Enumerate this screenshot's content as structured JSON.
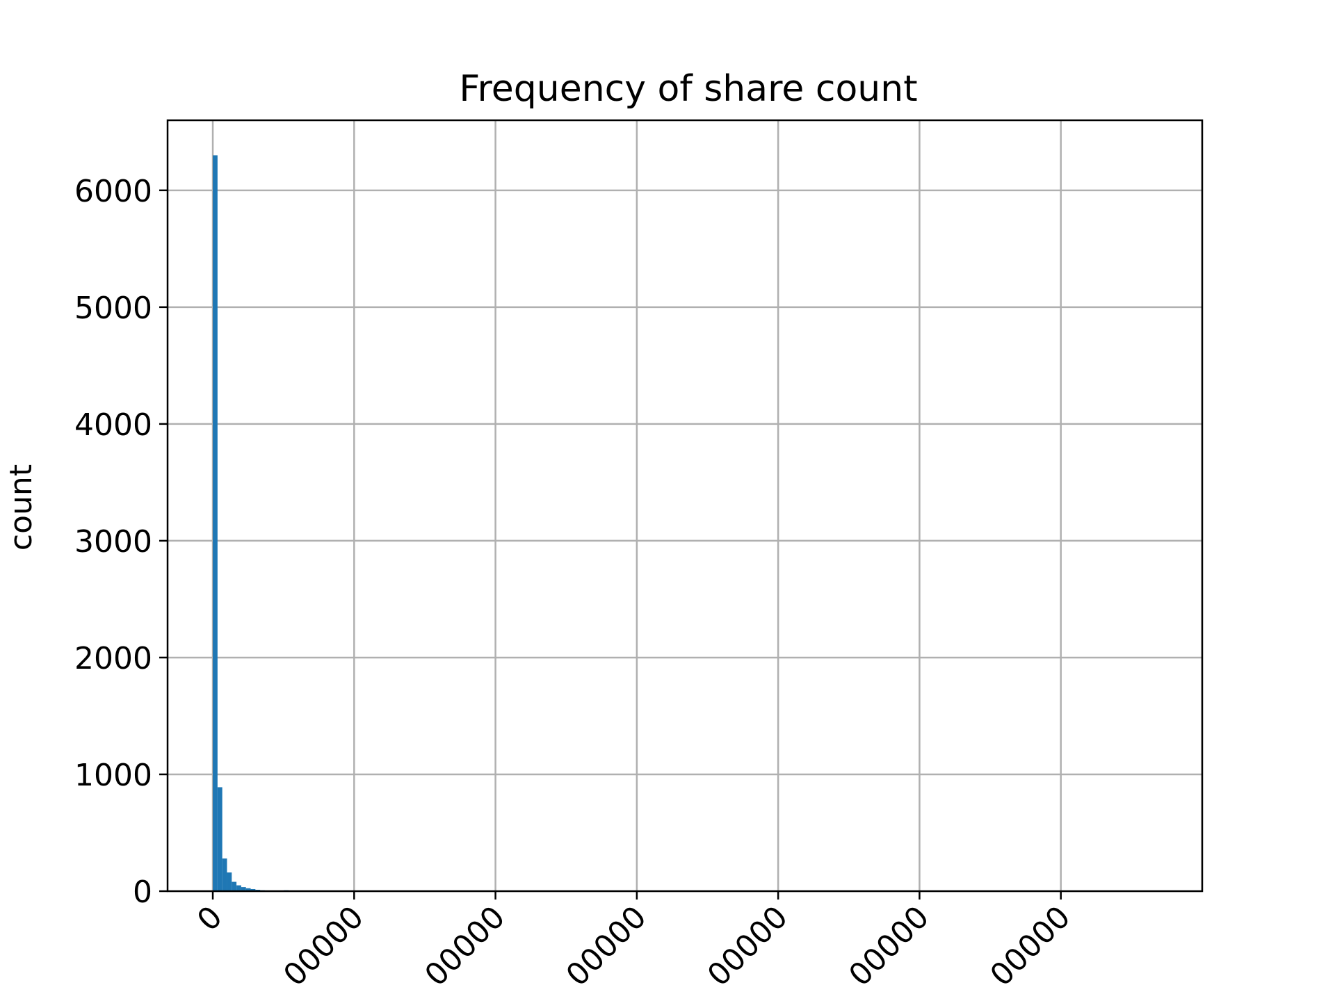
{
  "chart_data": {
    "type": "bar",
    "title": "Frequency of share count",
    "xlabel": "",
    "ylabel": "count",
    "ylim": [
      0,
      6600
    ],
    "xlim": [
      -320000,
      7000000
    ],
    "grid": true,
    "bar_color": "#1f77b4",
    "y_ticks": [
      0,
      1000,
      2000,
      3000,
      4000,
      5000,
      6000
    ],
    "y_tick_labels": [
      "0",
      "1000",
      "2000",
      "3000",
      "4000",
      "5000",
      "6000"
    ],
    "x_ticks": [
      0,
      1000000,
      2000000,
      3000000,
      4000000,
      5000000,
      6000000
    ],
    "x_tick_labels": [
      "0",
      "00000",
      "00000",
      "00000",
      "00000",
      "00000",
      "00000"
    ],
    "bin_width": 33500,
    "bins": [
      {
        "x": 0,
        "value": 6300
      },
      {
        "x": 33500,
        "value": 890
      },
      {
        "x": 67000,
        "value": 280
      },
      {
        "x": 100500,
        "value": 160
      },
      {
        "x": 134000,
        "value": 80
      },
      {
        "x": 167500,
        "value": 50
      },
      {
        "x": 201000,
        "value": 35
      },
      {
        "x": 234500,
        "value": 25
      },
      {
        "x": 268000,
        "value": 18
      },
      {
        "x": 301500,
        "value": 12
      },
      {
        "x": 335000,
        "value": 8
      },
      {
        "x": 368500,
        "value": 6
      },
      {
        "x": 402000,
        "value": 4
      },
      {
        "x": 435500,
        "value": 3
      },
      {
        "x": 469000,
        "value": 2
      },
      {
        "x": 502500,
        "value": 8
      },
      {
        "x": 536000,
        "value": 2
      },
      {
        "x": 569500,
        "value": 1
      },
      {
        "x": 603000,
        "value": 1
      }
    ]
  }
}
